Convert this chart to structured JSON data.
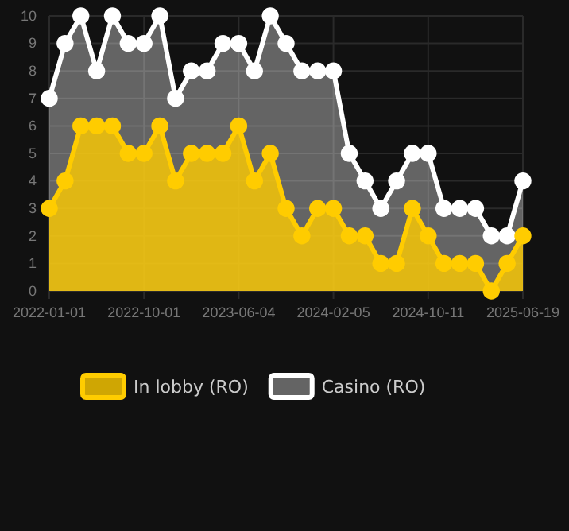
{
  "chart_data": {
    "type": "area",
    "categories": [
      "2022-01-01",
      null,
      null,
      null,
      null,
      null,
      "2022-10-01",
      null,
      null,
      null,
      null,
      null,
      "2023-06-04",
      null,
      null,
      null,
      null,
      null,
      "2024-02-05",
      null,
      null,
      null,
      null,
      null,
      "2024-10-11",
      null,
      null,
      null,
      null,
      null,
      "2025-06-19"
    ],
    "series": [
      {
        "name": "In lobby (RO)",
        "color": "#ffcc00",
        "values": [
          3,
          4,
          6,
          6,
          6,
          5,
          5,
          6,
          4,
          5,
          5,
          5,
          6,
          4,
          5,
          3,
          2,
          3,
          3,
          2,
          2,
          1,
          1,
          3,
          2,
          1,
          1,
          1,
          0,
          1,
          2
        ]
      },
      {
        "name": "Casino (RO)",
        "color": "#ffffff",
        "values": [
          7,
          9,
          10,
          8,
          10,
          9,
          9,
          10,
          7,
          8,
          8,
          9,
          9,
          8,
          10,
          9,
          8,
          8,
          8,
          5,
          4,
          3,
          4,
          5,
          5,
          3,
          3,
          3,
          2,
          2,
          4
        ]
      }
    ],
    "ylim": [
      0,
      10
    ],
    "yticks": [
      0,
      1,
      2,
      3,
      4,
      5,
      6,
      7,
      8,
      9,
      10
    ],
    "grid": true,
    "legend": "bottom",
    "marker": "circle",
    "line_style": "solid"
  }
}
